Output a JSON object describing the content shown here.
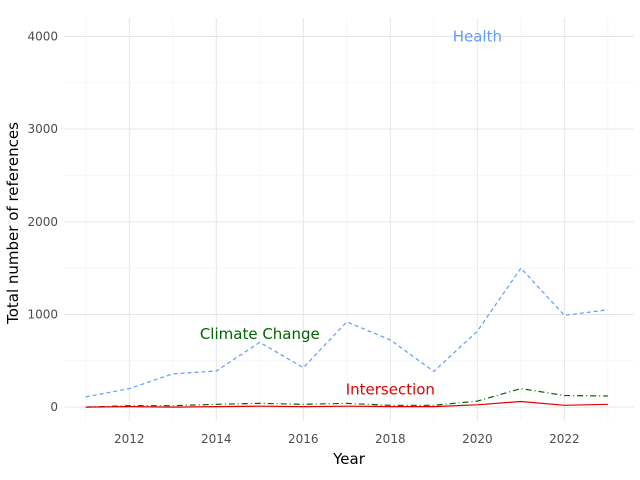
{
  "chart_data": {
    "type": "line",
    "title": "",
    "xlabel": "Year",
    "ylabel": "Total number of references",
    "x": [
      2011,
      2012,
      2013,
      2014,
      2015,
      2016,
      2017,
      2018,
      2019,
      2020,
      2021,
      2022,
      2023
    ],
    "xlim": [
      2010.5,
      2023.6
    ],
    "ylim": [
      -150,
      4200
    ],
    "xticks": [
      2012,
      2014,
      2016,
      2018,
      2020,
      2022
    ],
    "yticks": [
      0,
      1000,
      2000,
      3000,
      4000
    ],
    "grid": true,
    "legend": "direct labels",
    "series": [
      {
        "name": "Health",
        "color": "#619CFF",
        "dash": "dashed",
        "label_at": [
          2020,
          4000
        ],
        "values": [
          110,
          200,
          360,
          390,
          700,
          425,
          920,
          725,
          385,
          820,
          1500,
          990,
          1050
        ]
      },
      {
        "name": "Climate Change",
        "color": "#006400",
        "dash": "dashdot",
        "label_at": [
          2015,
          790
        ],
        "values": [
          0,
          15,
          15,
          30,
          40,
          30,
          40,
          20,
          20,
          65,
          200,
          125,
          120
        ]
      },
      {
        "name": "Intersection",
        "color": "#E30000",
        "dash": "solid",
        "label_at": [
          2018,
          190
        ],
        "values": [
          0,
          5,
          0,
          5,
          10,
          5,
          10,
          5,
          5,
          25,
          60,
          20,
          30
        ]
      }
    ]
  }
}
